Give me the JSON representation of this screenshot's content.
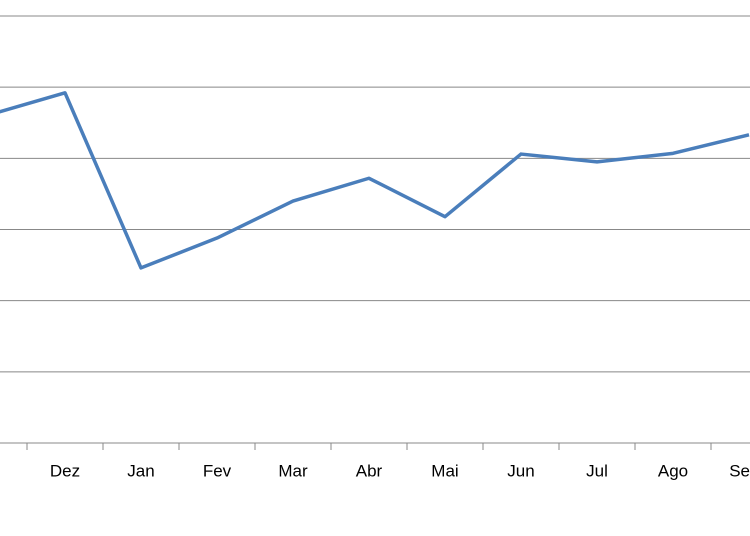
{
  "chart_data": {
    "type": "line",
    "categories": [
      "v",
      "Dez",
      "Jan",
      "Fev",
      "Mar",
      "Abr",
      "Mai",
      "Jun",
      "Jul",
      "Ago",
      "Se"
    ],
    "series": [
      {
        "name": null,
        "color": "#4a7ebb",
        "values": [
          4.61,
          4.92,
          2.46,
          2.88,
          3.4,
          3.72,
          3.18,
          4.06,
          3.95,
          4.07,
          4.33
        ]
      }
    ],
    "ylim": [
      0,
      6
    ],
    "yticks": [
      0,
      1,
      2,
      3,
      4,
      5,
      6
    ],
    "grid": true
  }
}
